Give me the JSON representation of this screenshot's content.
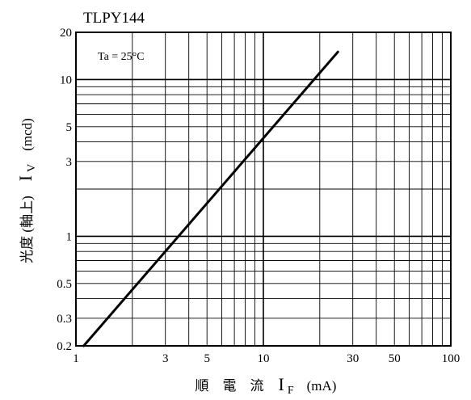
{
  "chart_data": {
    "type": "line",
    "title": "TLPY144",
    "annotation": "Ta = 25°C",
    "scale": {
      "x": "log",
      "y": "log"
    },
    "grid": true,
    "xlim": [
      1,
      100
    ],
    "ylim": [
      0.2,
      20
    ],
    "xlabel": {
      "text": "順　電　流",
      "symbol": "I",
      "subscript": "F",
      "unit": "(mA)"
    },
    "ylabel": {
      "text": "光度 (軸上)",
      "symbol": "I",
      "subscript": "V",
      "unit": "(mcd)"
    },
    "x_ticks": [
      {
        "value": 1,
        "label": "1"
      },
      {
        "value": 3,
        "label": "3"
      },
      {
        "value": 5,
        "label": "5"
      },
      {
        "value": 10,
        "label": "10"
      },
      {
        "value": 30,
        "label": "30"
      },
      {
        "value": 50,
        "label": "50"
      },
      {
        "value": 100,
        "label": "100"
      }
    ],
    "y_ticks": [
      {
        "value": 0.2,
        "label": "0.2"
      },
      {
        "value": 0.3,
        "label": "0.3"
      },
      {
        "value": 0.5,
        "label": "0.5"
      },
      {
        "value": 1,
        "label": "1"
      },
      {
        "value": 3,
        "label": "3"
      },
      {
        "value": 5,
        "label": "5"
      },
      {
        "value": 10,
        "label": "10"
      },
      {
        "value": 20,
        "label": "20"
      }
    ],
    "x_grid": [
      2,
      3,
      4,
      5,
      6,
      7,
      8,
      9,
      10,
      20,
      30,
      40,
      50,
      60,
      70,
      80,
      90
    ],
    "y_grid": [
      0.3,
      0.4,
      0.5,
      0.6,
      0.7,
      0.8,
      0.9,
      1,
      2,
      3,
      4,
      5,
      6,
      7,
      8,
      9,
      10
    ],
    "series": [
      {
        "x": [
          1.1,
          25
        ],
        "y": [
          0.2,
          15
        ]
      }
    ]
  }
}
